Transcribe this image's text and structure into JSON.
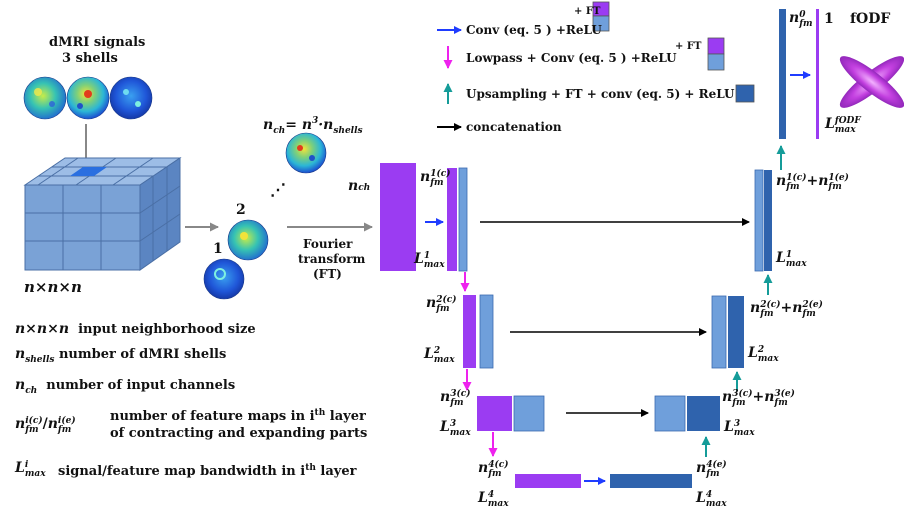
{
  "input": {
    "title_line1": "dMRI signals",
    "title_line2": "3 shells",
    "cube_label": "n×n×n",
    "sphere_num_1": "1",
    "sphere_num_2": "2",
    "dots": "⋰",
    "nch_eq": "= n",
    "nch_exp": "3",
    "nch_dot": "·n",
    "nch_sub": "shells"
  },
  "fourier": {
    "line1": "Fourier",
    "line2": "transform",
    "line3": "(FT)"
  },
  "legend": {
    "conv_relu": "Conv (eq. 5 ) +ReLU",
    "ft": "+ FT",
    "lowpass": "Lowpass + Conv (eq. 5 ) +ReLU",
    "upsampling": "Upsampling + FT + conv (eq. 5) + ReLU",
    "concatenation": "concatenation"
  },
  "network": {
    "nch": "n",
    "nch_sub": "ch",
    "n_fm": "n",
    "fm_sub": "fm",
    "L": "L",
    "max_sub": "max",
    "plus": "+",
    "sup_c1": "1(c)",
    "sup_c2": "2(c)",
    "sup_c3": "3(c)",
    "sup_c4": "4(c)",
    "sup_e1": "1(e)",
    "sup_e2": "2(e)",
    "sup_e3": "3(e)",
    "sup_e4": "4(e)",
    "sup_0": "0",
    "L1": "1",
    "L2": "2",
    "L3": "3",
    "L4": "4",
    "out_one": "1",
    "fodf_sup": "fODF",
    "fodf_title": "fODF"
  },
  "key": {
    "nnn_desc": "input neighborhood size",
    "shells_desc": "number of dMRI shells",
    "ch_desc": "number of input channels",
    "fm_desc_1": "number of feature maps in i",
    "fm_th": "th",
    "fm_desc_1b": " layer",
    "fm_desc_2": "of contracting and expanding parts",
    "L_desc": "signal/feature map bandwidth in i",
    "L_desc_b": " layer",
    "sup_i": "i",
    "sup_ic": "i(c)",
    "sup_ie": "i(e)",
    "slash": "/"
  },
  "colors": {
    "purple": "#9b3cf2",
    "light_blue": "#6f9fdb",
    "dark_blue": "#2f63ad",
    "blue_arrow": "#1f3cff",
    "magenta": "#ee22ee",
    "teal": "#159c99",
    "gray_arrow": "#888888",
    "cube_face": "#7aa2d6"
  }
}
